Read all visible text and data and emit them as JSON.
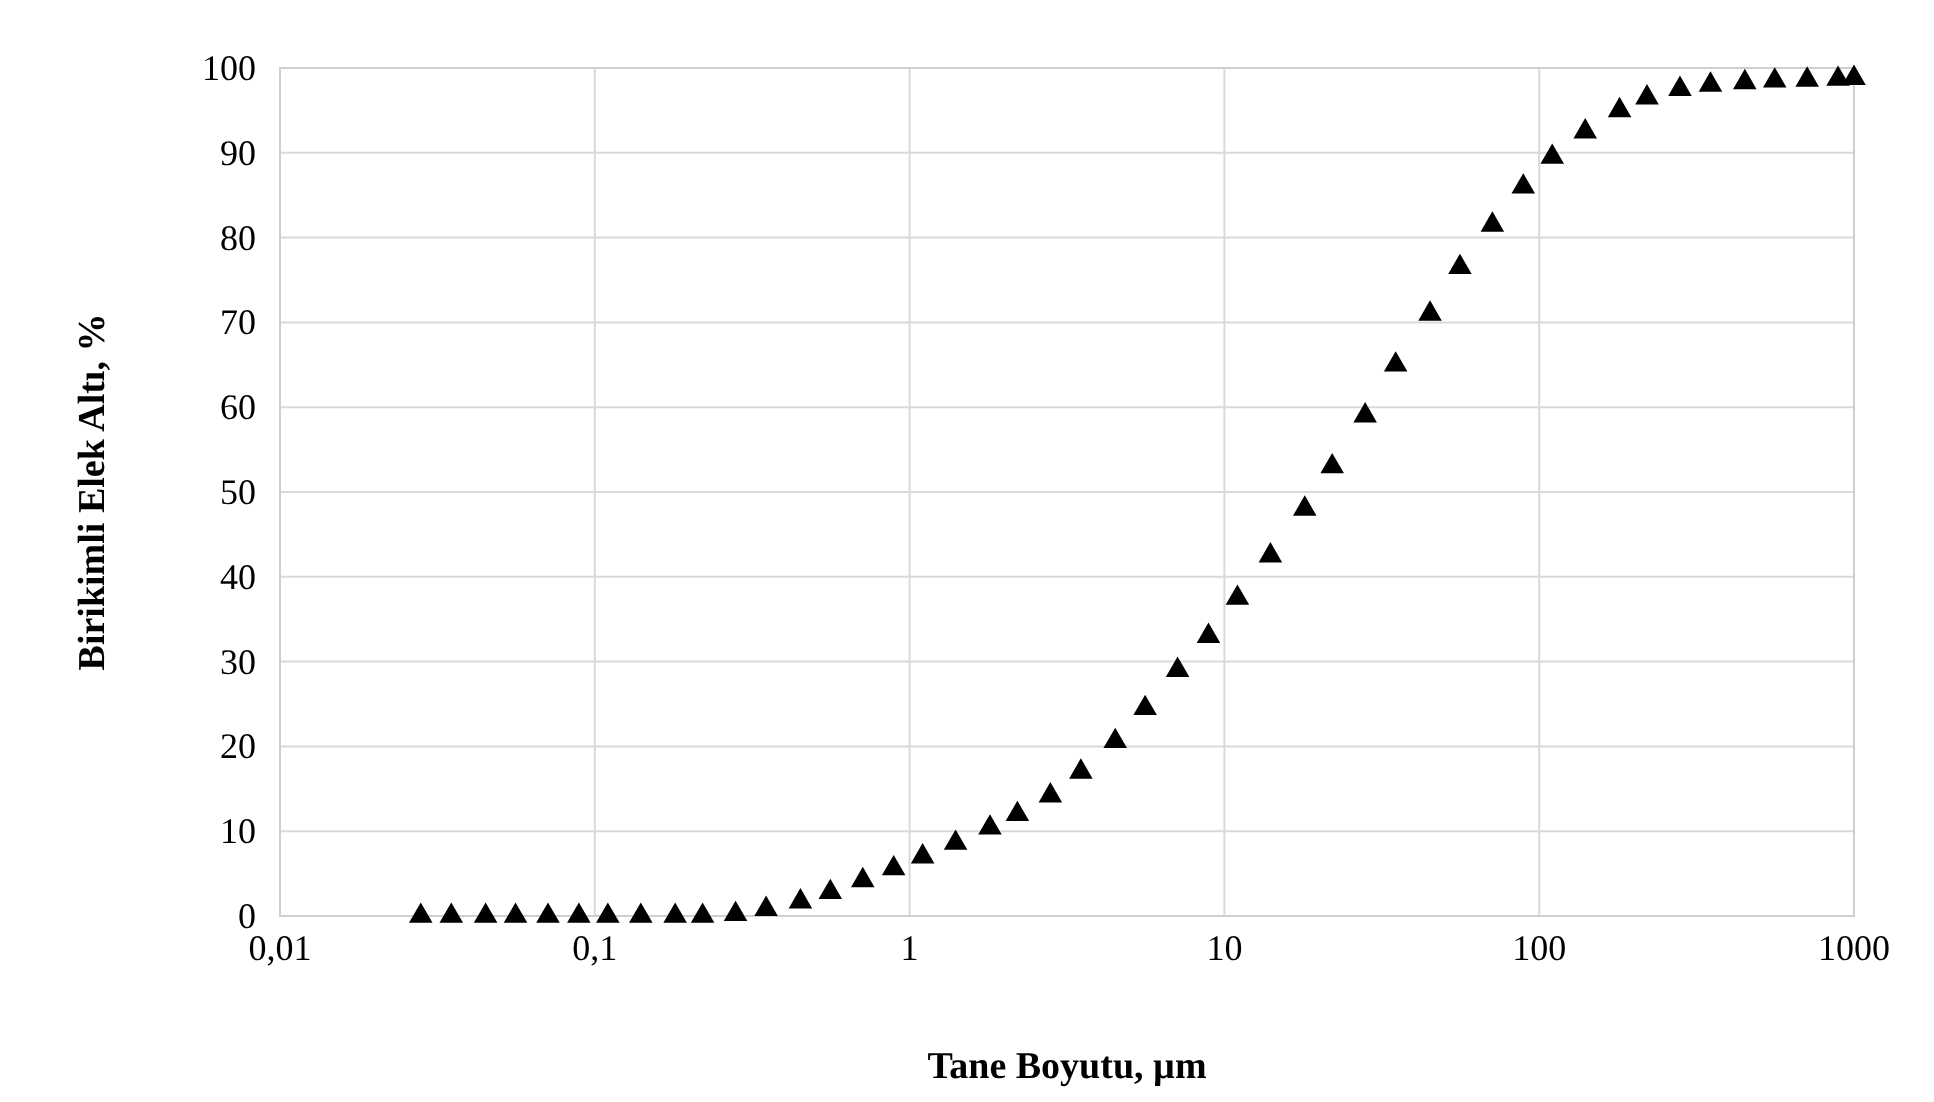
{
  "chart_data": {
    "type": "scatter",
    "xlabel": "Tane Boyutu, µm",
    "ylabel": "Birikimli Elek Altı, %",
    "log": "x",
    "grid": true,
    "marker": "triangle",
    "xlim": [
      0.01,
      1000
    ],
    "xticks": [
      {
        "value": 0.01,
        "label": "0,01"
      },
      {
        "value": 0.1,
        "label": "0,1"
      },
      1,
      10,
      100,
      1000
    ],
    "ylim": [
      0,
      100
    ],
    "yticks": [
      0,
      10,
      20,
      30,
      40,
      50,
      60,
      70,
      80,
      90,
      100
    ],
    "series": [
      {
        "color": "#000000",
        "x": [
          0.028,
          0.035,
          0.045,
          0.056,
          0.071,
          0.089,
          0.11,
          0.14,
          0.18,
          0.22,
          0.28,
          0.35,
          0.45,
          0.56,
          0.71,
          0.89,
          1.1,
          1.4,
          1.8,
          2.2,
          2.8,
          3.5,
          4.5,
          5.6,
          7.1,
          8.9,
          11,
          14,
          18,
          22,
          28,
          35,
          45,
          56,
          71,
          89,
          110,
          140,
          180,
          220,
          280,
          350,
          450,
          560,
          710,
          890,
          1000
        ],
        "values": [
          0,
          0,
          0,
          0,
          0,
          0,
          0,
          0,
          0,
          0,
          0.2,
          0.8,
          1.7,
          2.8,
          4.2,
          5.6,
          7,
          8.6,
          10.4,
          12,
          14.2,
          17,
          20.6,
          24.5,
          29,
          33,
          37.5,
          42.5,
          48,
          53,
          59,
          65,
          71,
          76.5,
          81.5,
          86,
          89.5,
          92.5,
          95,
          96.5,
          97.5,
          98,
          98.3,
          98.5,
          98.6,
          98.7,
          98.8
        ]
      }
    ]
  }
}
